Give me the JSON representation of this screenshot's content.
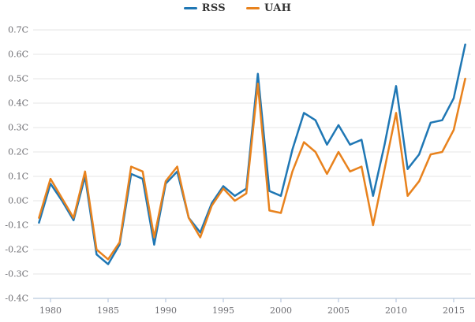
{
  "chart_data": {
    "type": "line",
    "title": "",
    "xlabel": "",
    "ylabel": "",
    "x": [
      1979,
      1980,
      1981,
      1982,
      1983,
      1984,
      1985,
      1986,
      1987,
      1988,
      1989,
      1990,
      1991,
      1992,
      1993,
      1994,
      1995,
      1996,
      1997,
      1998,
      1999,
      2000,
      2001,
      2002,
      2003,
      2004,
      2005,
      2006,
      2007,
      2008,
      2009,
      2010,
      2011,
      2012,
      2013,
      2014,
      2015,
      2016
    ],
    "series": [
      {
        "name": "RSS",
        "color": "#1f77b4",
        "values": [
          -0.09,
          0.07,
          0.0,
          -0.08,
          0.1,
          -0.22,
          -0.26,
          -0.18,
          0.11,
          0.09,
          -0.18,
          0.07,
          0.12,
          -0.07,
          -0.13,
          -0.01,
          0.06,
          0.02,
          0.05,
          0.52,
          0.04,
          0.02,
          0.21,
          0.36,
          0.33,
          0.23,
          0.31,
          0.23,
          0.25,
          0.02,
          0.23,
          0.47,
          0.13,
          0.19,
          0.32,
          0.33,
          0.42,
          0.64
        ]
      },
      {
        "name": "UAH",
        "color": "#e8821d",
        "values": [
          -0.07,
          0.09,
          0.01,
          -0.07,
          0.12,
          -0.2,
          -0.24,
          -0.17,
          0.14,
          0.12,
          -0.15,
          0.08,
          0.14,
          -0.07,
          -0.15,
          -0.02,
          0.05,
          0.0,
          0.03,
          0.48,
          -0.04,
          -0.05,
          0.12,
          0.24,
          0.2,
          0.11,
          0.2,
          0.12,
          0.14,
          -0.1,
          0.13,
          0.36,
          0.02,
          0.08,
          0.19,
          0.2,
          0.29,
          0.5
        ]
      }
    ],
    "ylim": [
      -0.4,
      0.7
    ],
    "xlim": [
      1978.5,
      2016.6
    ],
    "grid": true,
    "legend_position": "top-center",
    "y_ticks": [
      {
        "value": 0.7,
        "label": "0.7C"
      },
      {
        "value": 0.6,
        "label": "0.6C"
      },
      {
        "value": 0.5,
        "label": "0.5C"
      },
      {
        "value": 0.4,
        "label": "0.4C"
      },
      {
        "value": 0.3,
        "label": "0.3C"
      },
      {
        "value": 0.2,
        "label": "0.2C"
      },
      {
        "value": 0.1,
        "label": "0.1C"
      },
      {
        "value": 0.0,
        "label": "0.0C"
      },
      {
        "value": -0.1,
        "label": "-0.1C"
      },
      {
        "value": -0.2,
        "label": "-0.2C"
      },
      {
        "value": -0.3,
        "label": "-0.3C"
      },
      {
        "value": -0.4,
        "label": "-0.4C"
      }
    ],
    "x_ticks": [
      {
        "value": 1980,
        "label": "1980"
      },
      {
        "value": 1985,
        "label": "1985"
      },
      {
        "value": 1990,
        "label": "1990"
      },
      {
        "value": 1995,
        "label": "1995"
      },
      {
        "value": 2000,
        "label": "2000"
      },
      {
        "value": 2005,
        "label": "2005"
      },
      {
        "value": 2010,
        "label": "2010"
      },
      {
        "value": 2015,
        "label": "2015"
      }
    ],
    "colors": {
      "gridline": "#e6e6e6",
      "axis_line": "#b9c9de",
      "tick_label": "#6e6e73",
      "legend_text": "#333333",
      "background": "#ffffff"
    }
  },
  "legend": {
    "items": [
      {
        "label": "RSS",
        "color": "#1f77b4"
      },
      {
        "label": "UAH",
        "color": "#e8821d"
      }
    ]
  }
}
